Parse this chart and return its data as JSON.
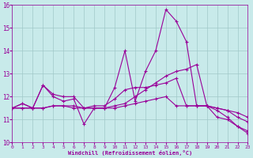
{
  "xlabel": "Windchill (Refroidissement éolien,°C)",
  "bg_color": "#c8eaea",
  "grid_color": "#a0c8c8",
  "line_color": "#990099",
  "xlim": [
    0,
    23
  ],
  "ylim": [
    10,
    16
  ],
  "yticks": [
    10,
    11,
    12,
    13,
    14,
    15,
    16
  ],
  "xticks": [
    0,
    1,
    2,
    3,
    4,
    5,
    6,
    7,
    8,
    9,
    10,
    11,
    12,
    13,
    14,
    15,
    16,
    17,
    18,
    19,
    20,
    21,
    22,
    23
  ],
  "line1_x": [
    0,
    1,
    2,
    3,
    4,
    5,
    6,
    7,
    8,
    9,
    10,
    11,
    12,
    13,
    14,
    15,
    16,
    17,
    18,
    19,
    20,
    21,
    22,
    23
  ],
  "line1_y": [
    11.5,
    11.7,
    11.5,
    12.5,
    12.0,
    11.8,
    11.9,
    10.8,
    11.5,
    11.5,
    12.4,
    14.0,
    11.8,
    13.1,
    14.0,
    15.8,
    15.3,
    14.4,
    11.6,
    11.6,
    11.1,
    11.0,
    10.7,
    10.5
  ],
  "line2_x": [
    0,
    1,
    2,
    3,
    4,
    5,
    6,
    7,
    8,
    9,
    10,
    11,
    12,
    13,
    14,
    15,
    16,
    17,
    18,
    19,
    20,
    21,
    22,
    23
  ],
  "line2_y": [
    11.5,
    11.5,
    11.5,
    11.5,
    11.6,
    11.6,
    11.5,
    11.5,
    11.5,
    11.5,
    11.6,
    11.7,
    12.0,
    12.3,
    12.6,
    12.9,
    13.1,
    13.2,
    13.4,
    11.6,
    11.4,
    11.1,
    10.7,
    10.4
  ],
  "line3_x": [
    0,
    1,
    2,
    3,
    4,
    5,
    6,
    7,
    8,
    9,
    10,
    11,
    12,
    13,
    14,
    15,
    16,
    17,
    18,
    19,
    20,
    21,
    22,
    23
  ],
  "line3_y": [
    11.5,
    11.7,
    11.5,
    12.5,
    12.1,
    12.0,
    12.0,
    11.5,
    11.6,
    11.6,
    11.9,
    12.3,
    12.4,
    12.4,
    12.5,
    12.6,
    12.8,
    11.6,
    11.6,
    11.6,
    11.5,
    11.4,
    11.3,
    11.1
  ],
  "line4_x": [
    0,
    1,
    2,
    3,
    4,
    5,
    6,
    7,
    8,
    9,
    10,
    11,
    12,
    13,
    14,
    15,
    16,
    17,
    18,
    19,
    20,
    21,
    22,
    23
  ],
  "line4_y": [
    11.5,
    11.5,
    11.5,
    11.5,
    11.6,
    11.6,
    11.6,
    11.5,
    11.5,
    11.5,
    11.5,
    11.6,
    11.7,
    11.8,
    11.9,
    12.0,
    11.6,
    11.6,
    11.6,
    11.6,
    11.5,
    11.4,
    11.1,
    10.9
  ]
}
